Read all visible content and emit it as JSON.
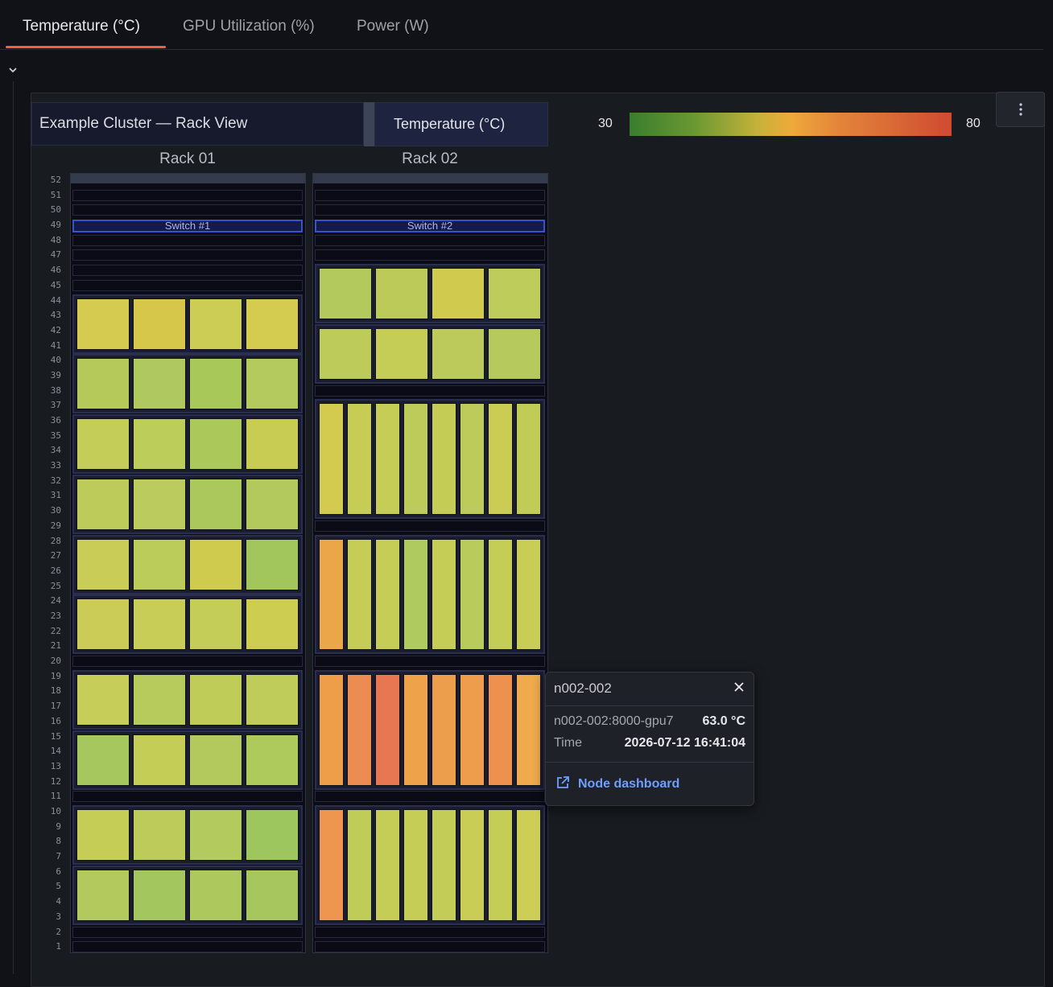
{
  "tabs": [
    {
      "label": "Temperature (°C)",
      "active": true
    },
    {
      "label": "GPU Utilization (%)",
      "active": false
    },
    {
      "label": "Power (W)",
      "active": false
    }
  ],
  "panel": {
    "title": "Example Cluster — Rack View",
    "metric": "Temperature (°C)",
    "menu_icon": "kebab-menu-icon",
    "collapse_icon": "chevron-down-icon",
    "legend": {
      "min": "30",
      "max": "80",
      "colors": [
        "#3a7d2e",
        "#6a9832",
        "#c5b23a",
        "#eeaa3a",
        "#e3853a",
        "#cf4a32"
      ]
    }
  },
  "unit_labels": [
    "52",
    "51",
    "50",
    "49",
    "48",
    "47",
    "46",
    "45",
    "44",
    "43",
    "42",
    "41",
    "40",
    "39",
    "38",
    "37",
    "36",
    "35",
    "34",
    "33",
    "32",
    "31",
    "30",
    "29",
    "28",
    "27",
    "26",
    "25",
    "24",
    "23",
    "22",
    "21",
    "20",
    "19",
    "18",
    "17",
    "16",
    "15",
    "14",
    "13",
    "12",
    "11",
    "10",
    "9",
    "8",
    "7",
    "6",
    "5",
    "4",
    "3",
    "2",
    "1"
  ],
  "racks": [
    {
      "name": "Rack 01",
      "switch": {
        "label": "Switch #1",
        "unit": 49
      },
      "servers": [
        {
          "top_unit": 44,
          "units": 4,
          "gpu_colors": [
            "#d4cb50",
            "#d6c64a",
            "#cccd55",
            "#d3cc50"
          ]
        },
        {
          "top_unit": 40,
          "units": 4,
          "gpu_colors": [
            "#b5c95a",
            "#b0c860",
            "#a8c95a",
            "#b4c95e"
          ]
        },
        {
          "top_unit": 36,
          "units": 4,
          "gpu_colors": [
            "#c4cd58",
            "#bccd5a",
            "#abc95a",
            "#c9cc52"
          ]
        },
        {
          "top_unit": 32,
          "units": 4,
          "gpu_colors": [
            "#bdcb5a",
            "#bbcb5e",
            "#abc85d",
            "#b3c95e"
          ]
        },
        {
          "top_unit": 28,
          "units": 4,
          "gpu_colors": [
            "#c9cc56",
            "#bbcc5a",
            "#cfcb4e",
            "#a3c65c"
          ]
        },
        {
          "top_unit": 24,
          "units": 4,
          "gpu_colors": [
            "#cbcc57",
            "#c7cd56",
            "#c4cd58",
            "#cdcd52"
          ]
        },
        {
          "top_unit": 19,
          "units": 4,
          "gpu_colors": [
            "#c6cd58",
            "#b7ca5c",
            "#c0cc58",
            "#bfcc59"
          ]
        },
        {
          "top_unit": 15,
          "units": 4,
          "gpu_colors": [
            "#a6c75d",
            "#c4cd55",
            "#b3c95e",
            "#aec95c"
          ]
        },
        {
          "top_unit": 10,
          "units": 4,
          "gpu_colors": [
            "#c5cd56",
            "#bccb59",
            "#b3ca5e",
            "#9ec65f"
          ]
        },
        {
          "top_unit": 6,
          "units": 4,
          "gpu_colors": [
            "#b3c95e",
            "#a3c65f",
            "#adc85d",
            "#a7c65e"
          ]
        }
      ]
    },
    {
      "name": "Rack 02",
      "switch": {
        "label": "Switch #2",
        "unit": 49
      },
      "servers": [
        {
          "top_unit": 46,
          "units": 4,
          "gpu_colors": [
            "#b3c95e",
            "#bcca5a",
            "#d0cb4f",
            "#bdcc5a"
          ]
        },
        {
          "top_unit": 42,
          "units": 4,
          "gpu_colors": [
            "#bccb5a",
            "#c5cd57",
            "#bbca5a",
            "#b5c95d"
          ]
        },
        {
          "top_unit": 37,
          "units": 8,
          "gpu_colors": [
            "#d3cb4f",
            "#c7cc55",
            "#c5cd56",
            "#bccb59",
            "#c4cc56",
            "#bccb59",
            "#cbcc53",
            "#c1cc57"
          ]
        },
        {
          "top_unit": 28,
          "units": 8,
          "gpu_colors": [
            "#eba64a",
            "#c6cd56",
            "#c5cd57",
            "#afca5e",
            "#c5cd56",
            "#b9cb5a",
            "#c4cd55",
            "#c8cd55"
          ]
        },
        {
          "top_unit": 19,
          "units": 8,
          "gpu_colors": [
            "#ee9d49",
            "#ed8c50",
            "#e77752",
            "#eea24a",
            "#ed9e4c",
            "#ee9d4c",
            "#ee914f",
            "#eeaa4c"
          ]
        },
        {
          "top_unit": 10,
          "units": 8,
          "gpu_colors": [
            "#ee9650",
            "#c0cc58",
            "#c5cd56",
            "#c5cd56",
            "#c2cc56",
            "#c9cd55",
            "#c4cd56",
            "#ccce56"
          ]
        }
      ]
    }
  ],
  "tooltip": {
    "title": "n002-002",
    "series": "n002-002:8000-gpu7",
    "value": "63.0 °C",
    "time_label": "Time",
    "time_value": "2026-07-12 16:41:04",
    "link": "Node dashboard",
    "link_icon": "external-link-icon",
    "close_icon": "close-icon"
  }
}
